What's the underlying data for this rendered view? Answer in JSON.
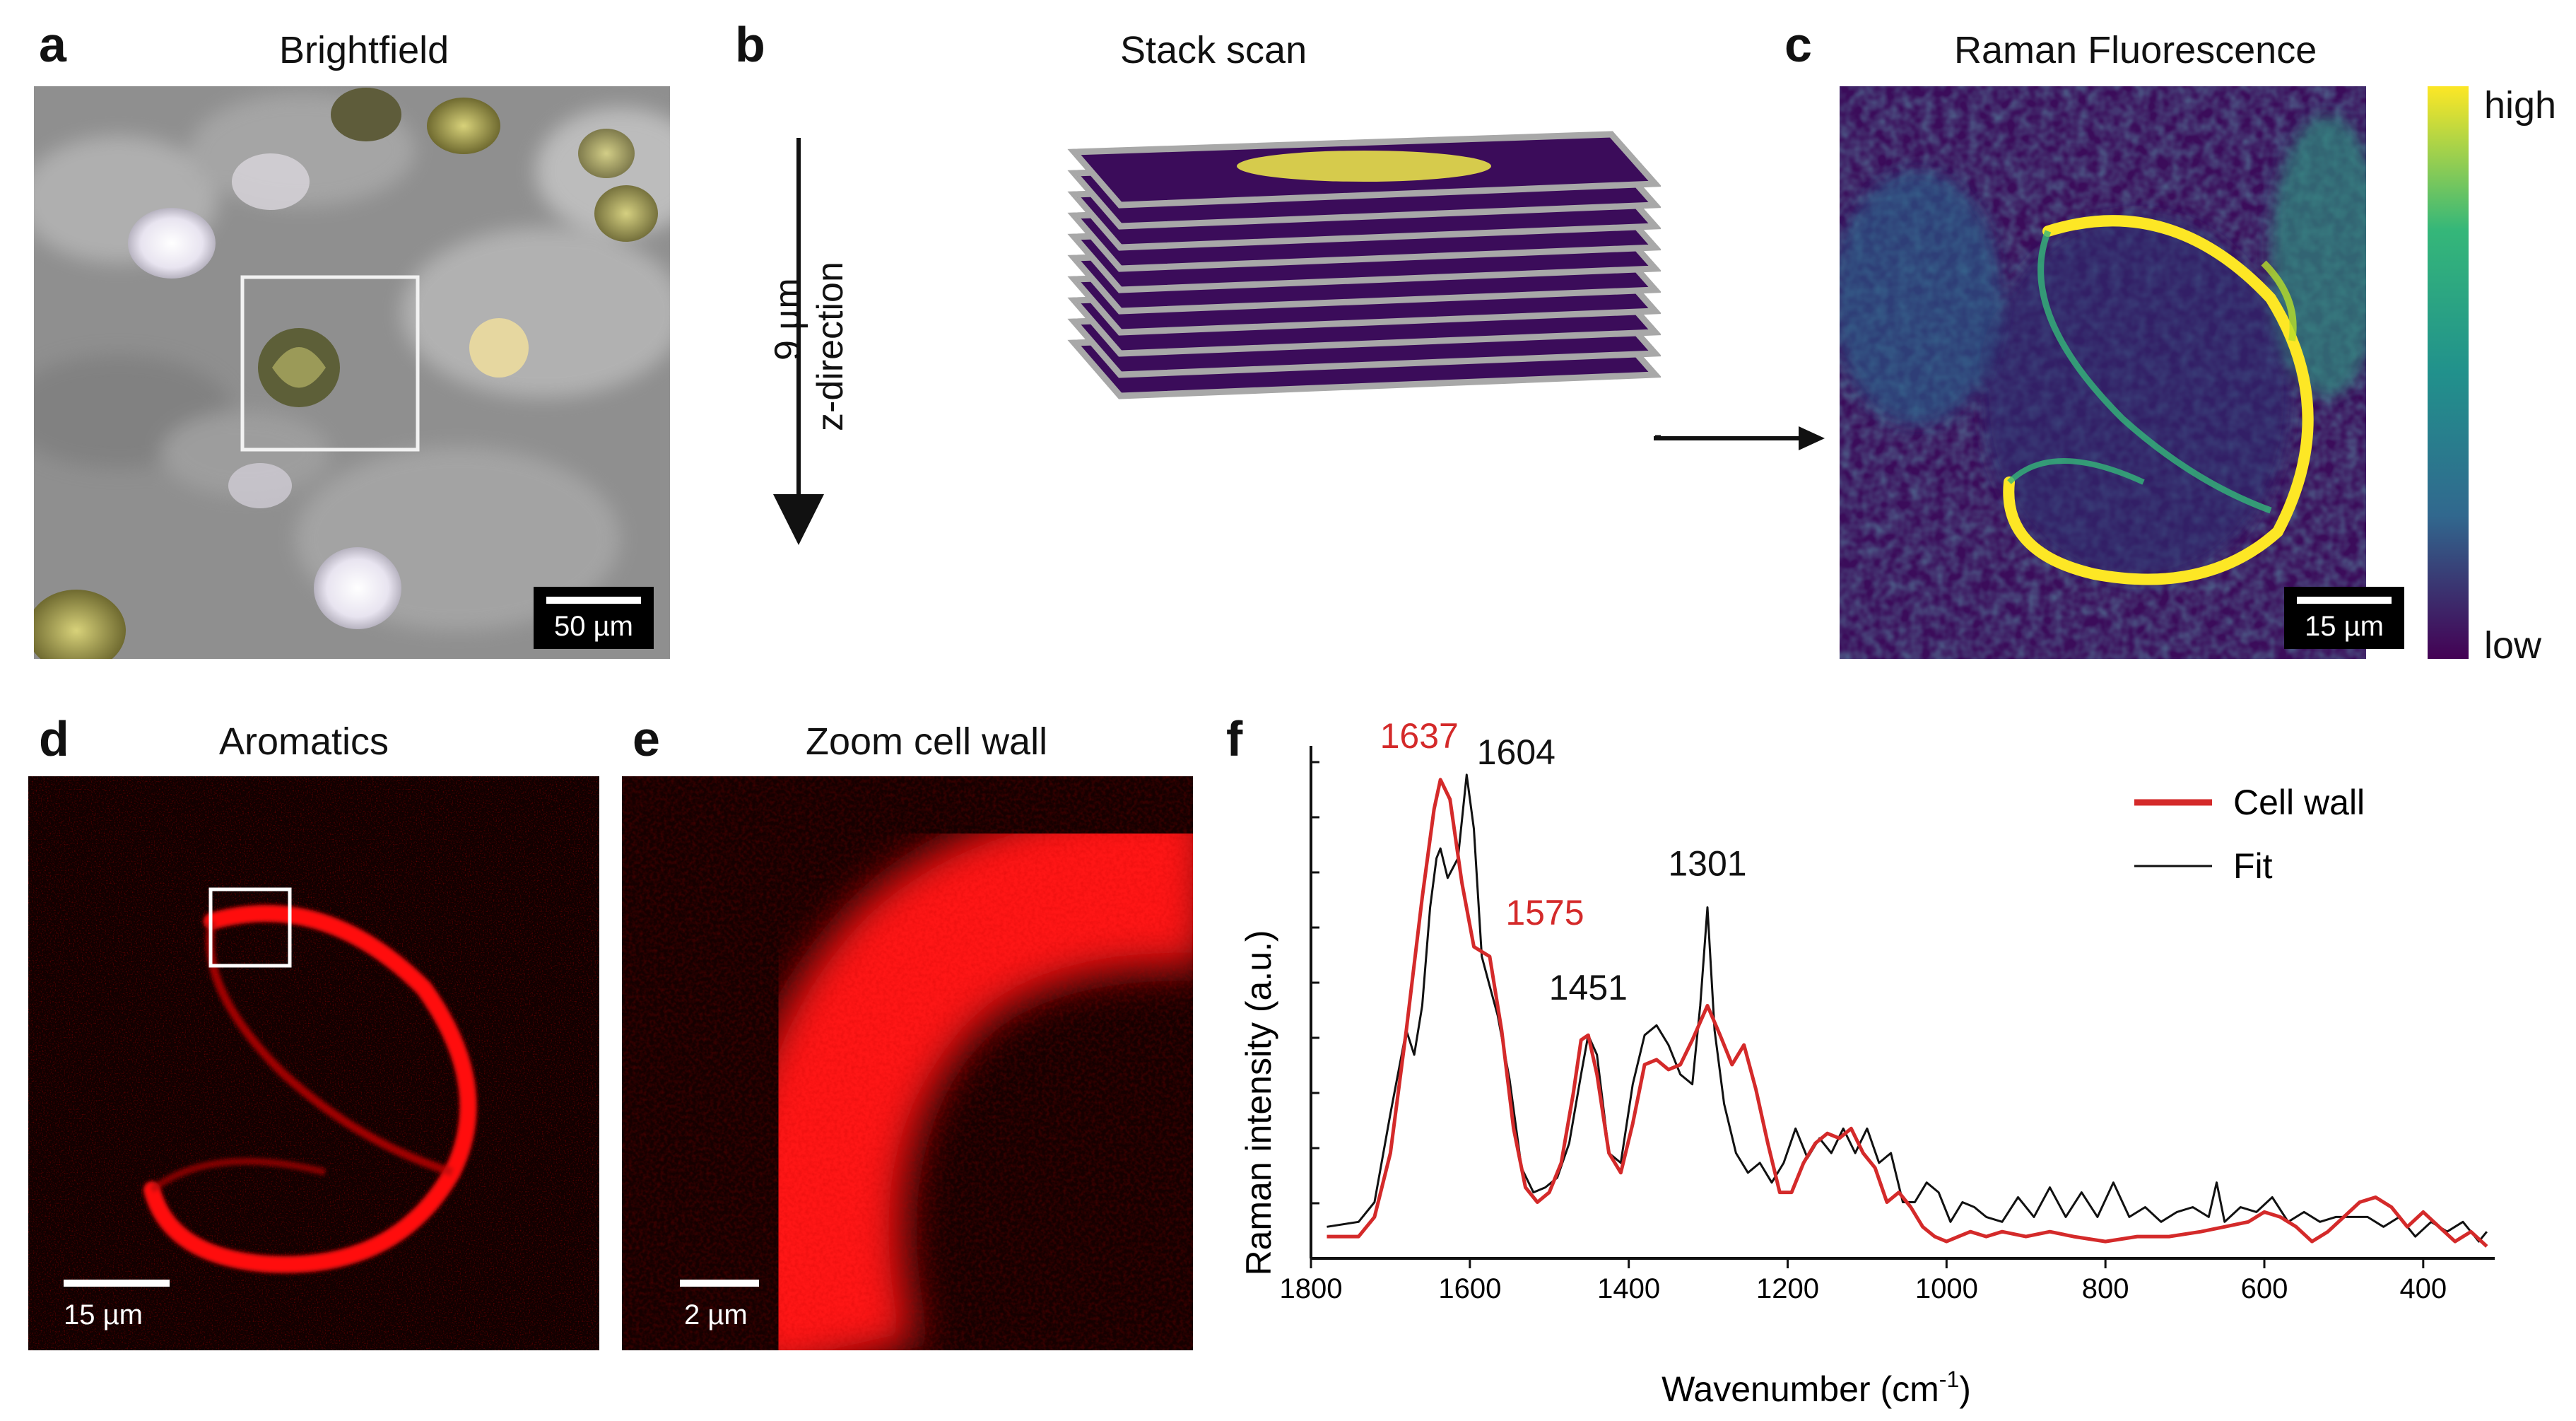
{
  "panels": {
    "a": {
      "letter": "a",
      "title": "Brightfield",
      "scalebar": "50 µm"
    },
    "b": {
      "letter": "b",
      "title": "Stack scan",
      "depth_label": "9 µm",
      "direction_label": "z-direction"
    },
    "c": {
      "letter": "c",
      "title": "Raman Fluorescence",
      "scalebar": "15 µm",
      "colorbar_high": "high",
      "colorbar_low": "low",
      "colormap": [
        "#440154",
        "#31688e",
        "#21918c",
        "#35b779",
        "#fde725"
      ]
    },
    "d": {
      "letter": "d",
      "title": "Aromatics",
      "scalebar": "15 µm"
    },
    "e": {
      "letter": "e",
      "title": "Zoom cell wall",
      "scalebar": "2 µm"
    },
    "f": {
      "letter": "f"
    }
  },
  "chart_data": {
    "type": "line",
    "xlabel": "Wavenumber (cm",
    "xlabel_sup": "-1",
    "xlabel_end": ")",
    "ylabel": "Raman intensity (a.u.)",
    "xlim": [
      1800,
      310
    ],
    "ylim": [
      0,
      1
    ],
    "x_reversed": true,
    "xticks": [
      1800,
      1600,
      1400,
      1200,
      1000,
      800,
      600,
      400
    ],
    "legend_position": "top-right",
    "series": [
      {
        "name": "Cell wall",
        "color": "#d42a2a",
        "x": [
          1780,
          1740,
          1720,
          1700,
          1680,
          1660,
          1645,
          1637,
          1625,
          1610,
          1595,
          1585,
          1575,
          1560,
          1545,
          1530,
          1515,
          1500,
          1485,
          1470,
          1460,
          1451,
          1440,
          1425,
          1410,
          1395,
          1380,
          1365,
          1350,
          1335,
          1320,
          1301,
          1285,
          1270,
          1255,
          1240,
          1225,
          1210,
          1195,
          1180,
          1165,
          1150,
          1135,
          1120,
          1105,
          1090,
          1075,
          1060,
          1045,
          1030,
          1015,
          1000,
          985,
          970,
          950,
          930,
          900,
          870,
          840,
          800,
          760,
          720,
          680,
          650,
          620,
          600,
          580,
          560,
          540,
          520,
          500,
          480,
          460,
          440,
          420,
          400,
          380,
          360,
          340,
          320
        ],
        "y": [
          0.03,
          0.03,
          0.07,
          0.2,
          0.45,
          0.72,
          0.9,
          0.96,
          0.92,
          0.75,
          0.62,
          0.61,
          0.6,
          0.45,
          0.25,
          0.13,
          0.1,
          0.12,
          0.18,
          0.32,
          0.43,
          0.44,
          0.36,
          0.2,
          0.16,
          0.26,
          0.38,
          0.39,
          0.37,
          0.38,
          0.43,
          0.5,
          0.44,
          0.38,
          0.42,
          0.33,
          0.22,
          0.12,
          0.12,
          0.18,
          0.22,
          0.24,
          0.23,
          0.25,
          0.2,
          0.17,
          0.1,
          0.12,
          0.09,
          0.05,
          0.03,
          0.02,
          0.03,
          0.04,
          0.03,
          0.04,
          0.03,
          0.04,
          0.03,
          0.02,
          0.03,
          0.03,
          0.04,
          0.05,
          0.06,
          0.08,
          0.07,
          0.05,
          0.02,
          0.04,
          0.07,
          0.1,
          0.11,
          0.09,
          0.05,
          0.08,
          0.05,
          0.02,
          0.04,
          0.01
        ]
      },
      {
        "name": "Fit",
        "color": "#111111",
        "x": [
          1780,
          1740,
          1720,
          1700,
          1680,
          1670,
          1660,
          1650,
          1642,
          1637,
          1628,
          1615,
          1604,
          1595,
          1585,
          1575,
          1565,
          1550,
          1535,
          1520,
          1505,
          1490,
          1475,
          1460,
          1451,
          1440,
          1425,
          1410,
          1395,
          1380,
          1365,
          1350,
          1335,
          1320,
          1310,
          1301,
          1292,
          1280,
          1265,
          1250,
          1235,
          1220,
          1205,
          1190,
          1175,
          1160,
          1145,
          1130,
          1115,
          1100,
          1085,
          1070,
          1055,
          1040,
          1025,
          1010,
          995,
          980,
          965,
          950,
          930,
          910,
          890,
          870,
          850,
          830,
          810,
          790,
          770,
          750,
          730,
          710,
          690,
          670,
          660,
          650,
          630,
          610,
          590,
          570,
          550,
          530,
          510,
          490,
          470,
          450,
          430,
          410,
          390,
          370,
          350,
          330,
          320
        ],
        "y": [
          0.05,
          0.06,
          0.1,
          0.28,
          0.45,
          0.4,
          0.5,
          0.7,
          0.8,
          0.82,
          0.76,
          0.8,
          0.97,
          0.86,
          0.6,
          0.54,
          0.48,
          0.35,
          0.17,
          0.12,
          0.13,
          0.15,
          0.22,
          0.36,
          0.44,
          0.4,
          0.2,
          0.18,
          0.34,
          0.44,
          0.46,
          0.42,
          0.36,
          0.34,
          0.5,
          0.7,
          0.45,
          0.3,
          0.2,
          0.16,
          0.18,
          0.14,
          0.18,
          0.25,
          0.19,
          0.23,
          0.2,
          0.25,
          0.2,
          0.25,
          0.18,
          0.2,
          0.1,
          0.1,
          0.14,
          0.12,
          0.06,
          0.1,
          0.09,
          0.07,
          0.06,
          0.11,
          0.07,
          0.13,
          0.07,
          0.12,
          0.07,
          0.14,
          0.07,
          0.09,
          0.06,
          0.08,
          0.09,
          0.07,
          0.14,
          0.06,
          0.09,
          0.08,
          0.11,
          0.06,
          0.08,
          0.06,
          0.07,
          0.07,
          0.07,
          0.05,
          0.07,
          0.03,
          0.06,
          0.04,
          0.06,
          0.02,
          0.04
        ]
      }
    ],
    "annotations": [
      {
        "text": "1637",
        "x": 1637,
        "color": "#d42a2a"
      },
      {
        "text": "1604",
        "x": 1604,
        "color": "#111111"
      },
      {
        "text": "1575",
        "x": 1575,
        "color": "#d42a2a"
      },
      {
        "text": "1451",
        "x": 1451,
        "color": "#111111"
      },
      {
        "text": "1301",
        "x": 1301,
        "color": "#111111"
      }
    ]
  }
}
